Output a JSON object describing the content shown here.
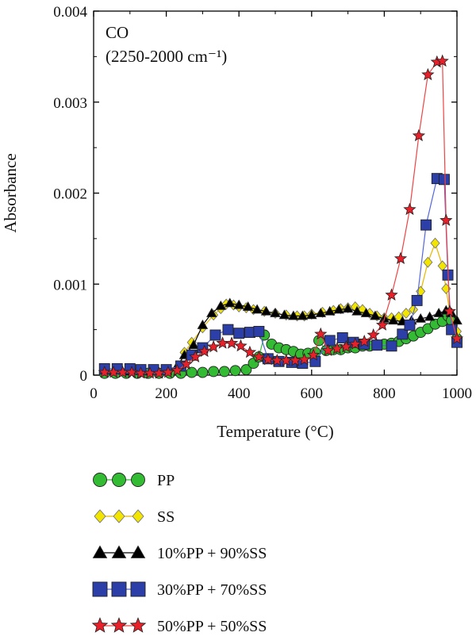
{
  "chart_data": {
    "type": "line",
    "title": "",
    "annotation": [
      "CO",
      "(2250-2000 cm⁻¹)"
    ],
    "xlabel": "Temperature (°C)",
    "ylabel": "Absorbance",
    "xlim": [
      0,
      1000
    ],
    "ylim": [
      0,
      0.004
    ],
    "xticks": [
      0,
      200,
      400,
      600,
      800,
      1000
    ],
    "xtick_labels": [
      "0",
      "200",
      "400",
      "600",
      "800",
      "1000"
    ],
    "yticks": [
      0,
      0.001,
      0.002,
      0.003,
      0.004
    ],
    "ytick_labels": [
      "0",
      "0.001",
      "0.002",
      "0.003",
      "0.004"
    ],
    "grid": false,
    "legend_position": "below",
    "series": [
      {
        "name": "PP",
        "marker": "circle",
        "color": "#33bb33",
        "line_color": "#33bb33",
        "x": [
          30,
          60,
          90,
          120,
          150,
          180,
          210,
          240,
          270,
          300,
          330,
          360,
          390,
          420,
          440,
          455,
          470,
          490,
          510,
          530,
          550,
          570,
          590,
          610,
          620,
          640,
          660,
          680,
          700,
          720,
          740,
          760,
          780,
          800,
          820,
          840,
          860,
          880,
          900,
          920,
          940,
          960,
          975,
          985,
          1000
        ],
        "y": [
          2e-05,
          2e-05,
          2e-05,
          2e-05,
          2e-05,
          2e-05,
          2e-05,
          2e-05,
          3e-05,
          3e-05,
          4e-05,
          4e-05,
          5e-05,
          6e-05,
          0.00013,
          0.0002,
          0.00044,
          0.00034,
          0.0003,
          0.00028,
          0.00026,
          0.00023,
          0.00024,
          0.00025,
          0.00038,
          0.00027,
          0.00028,
          0.00028,
          0.0003,
          0.0003,
          0.00032,
          0.00032,
          0.00033,
          0.00034,
          0.00035,
          0.00037,
          0.0004,
          0.00043,
          0.00047,
          0.00051,
          0.00056,
          0.00059,
          0.00065,
          0.0006,
          0.0004
        ]
      },
      {
        "name": "SS",
        "marker": "diamond",
        "color": "#f2e500",
        "line_color": "#e6b800",
        "x": [
          30,
          65,
          100,
          135,
          165,
          200,
          235,
          250,
          270,
          300,
          330,
          350,
          365,
          385,
          400,
          420,
          440,
          470,
          500,
          530,
          560,
          580,
          600,
          630,
          660,
          680,
          700,
          720,
          740,
          760,
          780,
          800,
          820,
          840,
          860,
          880,
          900,
          920,
          940,
          960,
          970,
          980,
          1000
        ],
        "y": [
          5e-05,
          5e-05,
          4e-05,
          4e-05,
          4e-05,
          5e-05,
          8e-05,
          0.00025,
          0.00036,
          0.00052,
          0.00066,
          0.00073,
          0.00078,
          0.00077,
          0.00075,
          0.00074,
          0.00072,
          0.0007,
          0.00068,
          0.00066,
          0.00065,
          0.00065,
          0.00067,
          0.00069,
          0.00071,
          0.00073,
          0.00074,
          0.00075,
          0.00072,
          0.00068,
          0.00065,
          0.00063,
          0.00063,
          0.00064,
          0.00068,
          0.00072,
          0.00092,
          0.00124,
          0.00145,
          0.0012,
          0.00095,
          0.0007,
          0.00048
        ]
      },
      {
        "name": "10%PP + 90%SS",
        "marker": "triangle",
        "color": "#000000",
        "line_color": "#000000",
        "x": [
          30,
          65,
          100,
          135,
          165,
          200,
          230,
          250,
          275,
          300,
          325,
          350,
          375,
          400,
          425,
          450,
          475,
          500,
          525,
          550,
          575,
          600,
          625,
          650,
          675,
          700,
          725,
          750,
          775,
          800,
          825,
          850,
          875,
          900,
          925,
          950,
          970,
          985,
          1000
        ],
        "y": [
          5e-05,
          5e-05,
          4e-05,
          4e-05,
          4e-05,
          5e-05,
          0.0001,
          0.00022,
          0.00033,
          0.00055,
          0.00068,
          0.00076,
          0.00079,
          0.00077,
          0.00075,
          0.00072,
          0.0007,
          0.00068,
          0.00066,
          0.00065,
          0.00065,
          0.00066,
          0.00068,
          0.0007,
          0.00072,
          0.00073,
          0.0007,
          0.00068,
          0.00065,
          0.00062,
          0.0006,
          0.00059,
          0.0006,
          0.00062,
          0.00064,
          0.00068,
          0.00071,
          0.00068,
          0.0006
        ]
      },
      {
        "name": "30%PP + 70%SS",
        "marker": "square",
        "color": "#2c3fa8",
        "line_color": "#5566dd",
        "x": [
          30,
          65,
          100,
          130,
          165,
          200,
          240,
          270,
          300,
          335,
          370,
          400,
          430,
          455,
          480,
          510,
          545,
          575,
          610,
          650,
          685,
          715,
          745,
          780,
          820,
          850,
          870,
          890,
          915,
          945,
          965,
          975,
          985,
          1000
        ],
        "y": [
          7e-05,
          7e-05,
          7e-05,
          6e-05,
          6e-05,
          6e-05,
          0.0001,
          0.00022,
          0.0003,
          0.00044,
          0.0005,
          0.00046,
          0.00047,
          0.00048,
          0.00018,
          0.00015,
          0.00014,
          0.00013,
          0.00015,
          0.00038,
          0.00041,
          0.00036,
          0.00034,
          0.00033,
          0.00032,
          0.00045,
          0.00055,
          0.00082,
          0.00165,
          0.00216,
          0.00215,
          0.0011,
          0.0005,
          0.00036
        ]
      },
      {
        "name": "50%PP + 50%SS",
        "marker": "star",
        "color": "#e8202a",
        "line_color": "#ee4444",
        "x": [
          30,
          55,
          80,
          105,
          130,
          155,
          180,
          205,
          230,
          255,
          280,
          305,
          330,
          355,
          380,
          405,
          430,
          455,
          480,
          505,
          530,
          555,
          580,
          605,
          625,
          645,
          670,
          695,
          720,
          745,
          770,
          795,
          820,
          845,
          870,
          895,
          920,
          945,
          960,
          970,
          980,
          1000
        ],
        "y": [
          3e-05,
          3e-05,
          3e-05,
          3e-05,
          2e-05,
          2e-05,
          2e-05,
          3e-05,
          5e-05,
          0.00012,
          0.0002,
          0.00026,
          0.00031,
          0.00035,
          0.00035,
          0.00032,
          0.00025,
          0.0002,
          0.00017,
          0.00016,
          0.00016,
          0.00016,
          0.00017,
          0.00022,
          0.00045,
          0.00027,
          0.00029,
          0.00031,
          0.00034,
          0.00037,
          0.00044,
          0.00055,
          0.00088,
          0.00128,
          0.00182,
          0.00263,
          0.0033,
          0.00344,
          0.00345,
          0.0017,
          0.0007,
          0.0004
        ]
      }
    ]
  }
}
